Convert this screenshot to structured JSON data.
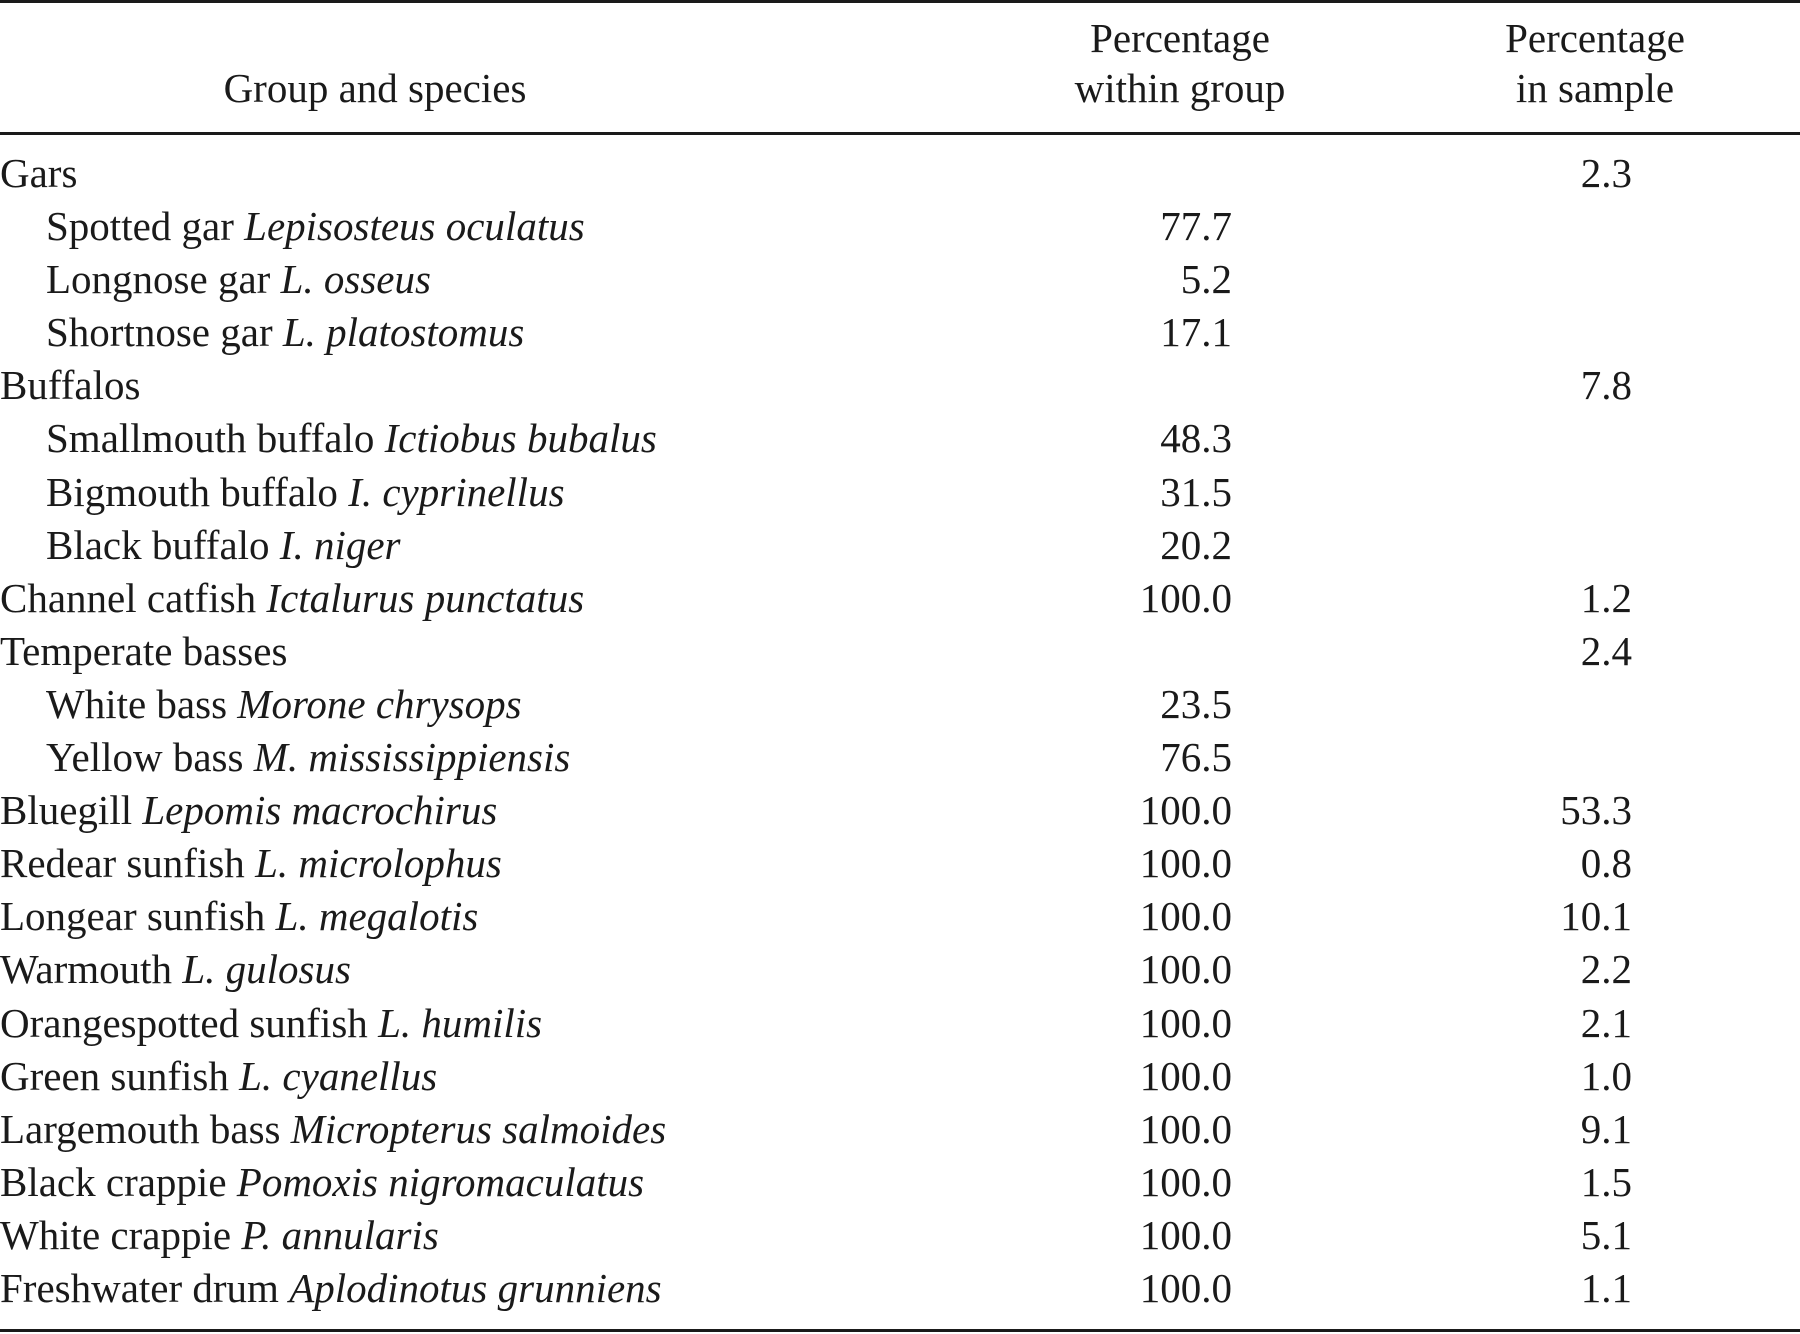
{
  "headers": {
    "group": "Group and species",
    "within_line1": "Percentage",
    "within_line2": "within group",
    "sample_line1": "Percentage",
    "sample_line2": "in sample"
  },
  "rows": [
    {
      "common": "Gars",
      "scientific": "",
      "within": "",
      "sample": "2.3",
      "indent": false
    },
    {
      "common": "Spotted gar",
      "scientific": "Lepisosteus oculatus",
      "within": "77.7",
      "sample": "",
      "indent": true
    },
    {
      "common": "Longnose gar",
      "scientific": "L. osseus",
      "within": "5.2",
      "sample": "",
      "indent": true
    },
    {
      "common": "Shortnose gar",
      "scientific": "L. platostomus",
      "within": "17.1",
      "sample": "",
      "indent": true
    },
    {
      "common": "Buffalos",
      "scientific": "",
      "within": "",
      "sample": "7.8",
      "indent": false
    },
    {
      "common": "Smallmouth buffalo",
      "scientific": "Ictiobus bubalus",
      "within": "48.3",
      "sample": "",
      "indent": true
    },
    {
      "common": "Bigmouth buffalo",
      "scientific": "I. cyprinellus",
      "within": "31.5",
      "sample": "",
      "indent": true
    },
    {
      "common": "Black buffalo",
      "scientific": "I. niger",
      "within": "20.2",
      "sample": "",
      "indent": true
    },
    {
      "common": "Channel catfish",
      "scientific": "Ictalurus punctatus",
      "within": "100.0",
      "sample": "1.2",
      "indent": false
    },
    {
      "common": "Temperate basses",
      "scientific": "",
      "within": "",
      "sample": "2.4",
      "indent": false
    },
    {
      "common": "White bass",
      "scientific": "Morone chrysops",
      "within": "23.5",
      "sample": "",
      "indent": true
    },
    {
      "common": "Yellow bass",
      "scientific": "M. mississippiensis",
      "within": "76.5",
      "sample": "",
      "indent": true
    },
    {
      "common": "Bluegill",
      "scientific": "Lepomis macrochirus",
      "within": "100.0",
      "sample": "53.3",
      "indent": false
    },
    {
      "common": "Redear sunfish",
      "scientific": "L. microlophus",
      "within": "100.0",
      "sample": "0.8",
      "indent": false
    },
    {
      "common": "Longear sunfish",
      "scientific": "L. megalotis",
      "within": "100.0",
      "sample": "10.1",
      "indent": false
    },
    {
      "common": "Warmouth",
      "scientific": "L. gulosus",
      "within": "100.0",
      "sample": "2.2",
      "indent": false
    },
    {
      "common": "Orangespotted sunfish",
      "scientific": "L. humilis",
      "within": "100.0",
      "sample": "2.1",
      "indent": false
    },
    {
      "common": "Green sunfish",
      "scientific": "L. cyanellus",
      "within": "100.0",
      "sample": "1.0",
      "indent": false
    },
    {
      "common": "Largemouth bass",
      "scientific": "Micropterus salmoides",
      "within": "100.0",
      "sample": "9.1",
      "indent": false
    },
    {
      "common": "Black crappie",
      "scientific": "Pomoxis nigromaculatus",
      "within": "100.0",
      "sample": "1.5",
      "indent": false
    },
    {
      "common": "White crappie",
      "scientific": "P. annularis",
      "within": "100.0",
      "sample": "5.1",
      "indent": false
    },
    {
      "common": "Freshwater drum",
      "scientific": "Aplodinotus grunniens",
      "within": "100.0",
      "sample": "1.1",
      "indent": false
    }
  ]
}
